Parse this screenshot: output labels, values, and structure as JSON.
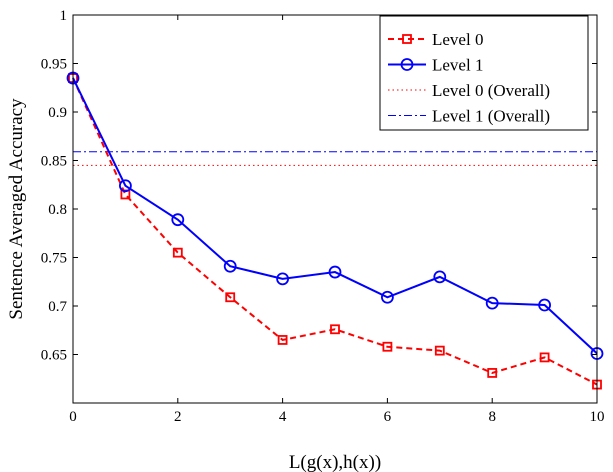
{
  "chart_data": {
    "type": "line",
    "xlabel": "L(g(x),h(x))",
    "ylabel": "Sentence Averaged Accuracy",
    "xlim": [
      0,
      10
    ],
    "ylim": [
      0.6,
      1.0
    ],
    "x_ticks": [
      "0",
      "2",
      "4",
      "6",
      "8",
      "10"
    ],
    "y_ticks": [
      "0.65",
      "0.7",
      "0.75",
      "0.8",
      "0.85",
      "0.9",
      "0.95",
      "1"
    ],
    "grid": false,
    "legend_position": "top-right",
    "x": [
      0,
      1,
      2,
      3,
      4,
      5,
      6,
      7,
      8,
      9,
      10
    ],
    "series": [
      {
        "name": "Level 0",
        "color": "#ff0000",
        "line_style": "dashed",
        "marker": "square",
        "values": [
          0.935,
          0.815,
          0.755,
          0.709,
          0.665,
          0.676,
          0.658,
          0.654,
          0.631,
          0.647,
          0.619
        ]
      },
      {
        "name": "Level 1",
        "color": "#0000ff",
        "line_style": "solid",
        "marker": "circle",
        "values": [
          0.935,
          0.824,
          0.789,
          0.741,
          0.728,
          0.735,
          0.709,
          0.73,
          0.703,
          0.701,
          0.651
        ]
      }
    ],
    "reference_lines": [
      {
        "name": "Level 0 (Overall)",
        "color": "#ff0000",
        "line_style": "dotted",
        "y": 0.845
      },
      {
        "name": "Level 1 (Overall)",
        "color": "#0000ff",
        "line_style": "dashdot",
        "y": 0.859
      }
    ]
  }
}
